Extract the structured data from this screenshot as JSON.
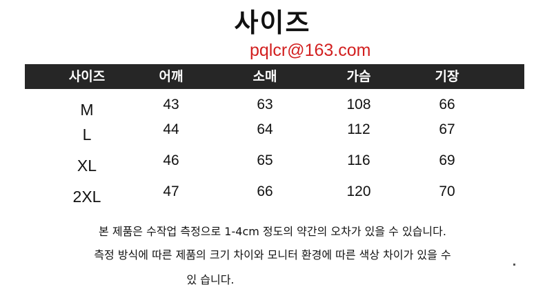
{
  "title": "사이즈",
  "table": {
    "headers": [
      "사이즈",
      "어깨",
      "소매",
      "가슴",
      "기장"
    ],
    "rows": [
      [
        "M",
        "43",
        "63",
        "108",
        "66"
      ],
      [
        "L",
        "44",
        "64",
        "112",
        "67"
      ],
      [
        "XL",
        "46",
        "65",
        "116",
        "69"
      ],
      [
        "2XL",
        "47",
        "66",
        "120",
        "70"
      ]
    ]
  },
  "watermark": "pqlcr@163.com",
  "notes": [
    "본 제품은 수작업 측정으로 1-4cm 정도의 약간의 오차가 있을 수 있습니다.",
    "측정 방식에 따른 제품의 크기 차이와 모니터 환경에 따른 색상 차이가 있을 수",
    "있 습니다."
  ],
  "colors": {
    "header_bg": "#262626",
    "header_text": "#ffffff",
    "watermark": "#d21f1f"
  }
}
